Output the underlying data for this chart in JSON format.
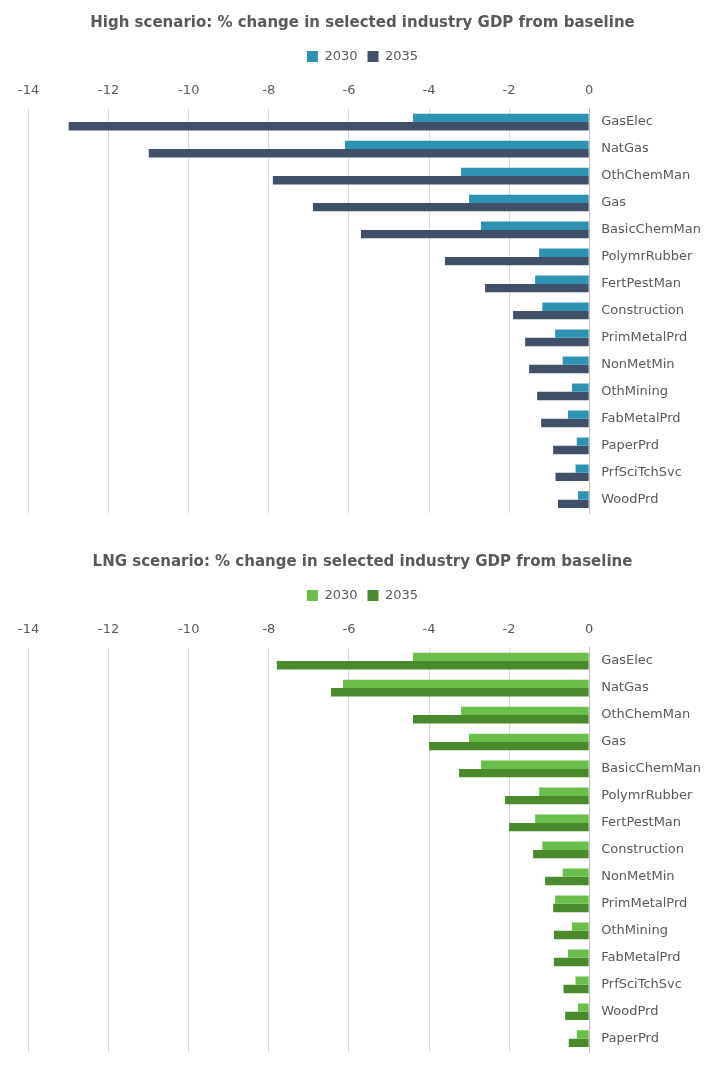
{
  "chart_data": [
    {
      "type": "bar",
      "orientation": "horizontal",
      "title": "High scenario: % change in selected industry GDP from baseline",
      "categories": [
        "GasElec",
        "NatGas",
        "OthChemMan",
        "Gas",
        "BasicChemMan",
        "PolymrRubber",
        "FertPestMan",
        "Construction",
        "PrimMetalPrd",
        "NonMetMin",
        "OthMining",
        "FabMetalPrd",
        "PaperPrd",
        "PrfSciTchSvc",
        "WoodPrd"
      ],
      "series": [
        {
          "name": "2030",
          "color": "#2e93b3",
          "values": [
            -4.4,
            -6.1,
            -3.2,
            -3.0,
            -2.7,
            -1.25,
            -1.35,
            -1.17,
            -0.85,
            -0.66,
            -0.43,
            -0.53,
            -0.31,
            -0.34,
            -0.28
          ]
        },
        {
          "name": "2035",
          "color": "#3f5068",
          "values": [
            -13.0,
            -11.0,
            -7.9,
            -6.9,
            -5.7,
            -3.6,
            -2.6,
            -1.9,
            -1.6,
            -1.5,
            -1.3,
            -1.2,
            -0.9,
            -0.84,
            -0.78
          ]
        }
      ],
      "xlim": [
        -14,
        0
      ],
      "xticks": [
        -14,
        -12,
        -10,
        -8,
        -6,
        -4,
        -2,
        0
      ],
      "grid": "x",
      "legend": "top"
    },
    {
      "type": "bar",
      "orientation": "horizontal",
      "title": "LNG scenario: % change in selected industry GDP from baseline",
      "categories": [
        "GasElec",
        "NatGas",
        "OthChemMan",
        "Gas",
        "BasicChemMan",
        "PolymrRubber",
        "FertPestMan",
        "Construction",
        "NonMetMin",
        "PrimMetalPrd",
        "OthMining",
        "FabMetalPrd",
        "PrfSciTchSvc",
        "WoodPrd",
        "PaperPrd"
      ],
      "series": [
        {
          "name": "2030",
          "color": "#6abf4b",
          "values": [
            -4.4,
            -6.15,
            -3.2,
            -3.0,
            -2.7,
            -1.25,
            -1.35,
            -1.17,
            -0.66,
            -0.85,
            -0.43,
            -0.53,
            -0.34,
            -0.28,
            -0.31
          ]
        },
        {
          "name": "2035",
          "color": "#4a8a2c",
          "values": [
            -7.8,
            -6.45,
            -4.4,
            -4.0,
            -3.25,
            -2.1,
            -2.0,
            -1.4,
            -1.1,
            -0.9,
            -0.88,
            -0.88,
            -0.64,
            -0.6,
            -0.51
          ]
        }
      ],
      "xlim": [
        -14,
        0
      ],
      "xticks": [
        -14,
        -12,
        -10,
        -8,
        -6,
        -4,
        -2,
        0
      ],
      "grid": "x",
      "legend": "top"
    }
  ]
}
